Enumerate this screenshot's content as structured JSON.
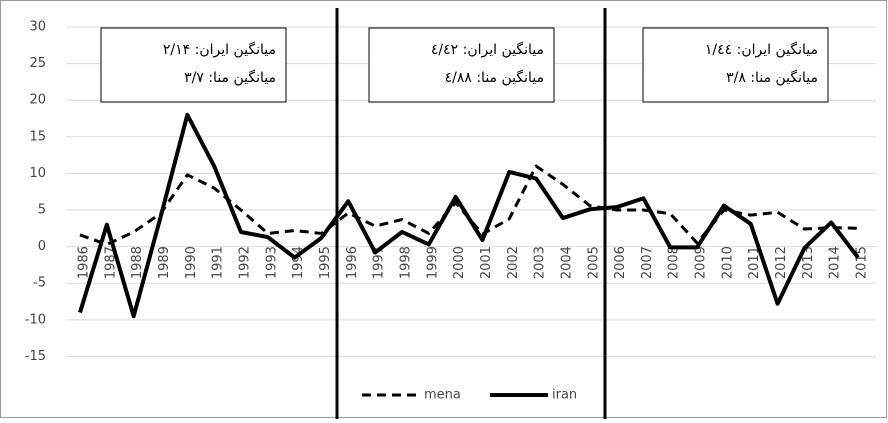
{
  "chart_data": {
    "type": "line",
    "categories": [
      "1986",
      "1987",
      "1988",
      "1989",
      "1990",
      "1991",
      "1992",
      "1993",
      "1994",
      "1995",
      "1996",
      "1997",
      "1998",
      "1999",
      "2000",
      "2001",
      "2002",
      "2003",
      "2004",
      "2005",
      "2006",
      "2007",
      "2008",
      "2009",
      "2010",
      "2011",
      "2012",
      "2013",
      "2014",
      "2015"
    ],
    "series": [
      {
        "name": "mena",
        "color": "#000000",
        "dash": true,
        "values": [
          1.6,
          0.3,
          2,
          4.5,
          9.8,
          8,
          5,
          1.8,
          2.2,
          1.8,
          4.6,
          2.8,
          3.7,
          1.8,
          6,
          1.7,
          3.8,
          11,
          8.5,
          5.6,
          5,
          5,
          4.5,
          0.5,
          5,
          4.3,
          4.7,
          2.4,
          2.6,
          2.5
        ]
      },
      {
        "name": "iran",
        "color": "#000000",
        "dash": false,
        "values": [
          -9,
          3,
          -9.5,
          4,
          18,
          11,
          2,
          1.3,
          -1.5,
          1.2,
          6.2,
          -0.8,
          2,
          0.3,
          6.8,
          0.9,
          10.2,
          9.3,
          3.9,
          5.1,
          5.4,
          6.6,
          -0.1,
          -0.1,
          5.6,
          3.1,
          -7.8,
          -0.2,
          3.3,
          -1.5
        ]
      }
    ],
    "ylim": [
      -23,
      30
    ],
    "yticks": [
      30,
      25,
      20,
      15,
      10,
      5,
      0,
      -5,
      -10,
      -15
    ],
    "grid": true,
    "annotations": [
      {
        "lines": [
          "میانگین ایران: ۲/۱۴",
          "میانگین منا: ۳/۷"
        ]
      },
      {
        "lines": [
          "میانگین ایران: ٤/٤۲",
          "میانگین منا: ٤/۸۸"
        ]
      },
      {
        "lines": [
          "میانگین ایران: ۱/٤٤",
          "میانگین منا: ۳/۸"
        ]
      }
    ]
  }
}
